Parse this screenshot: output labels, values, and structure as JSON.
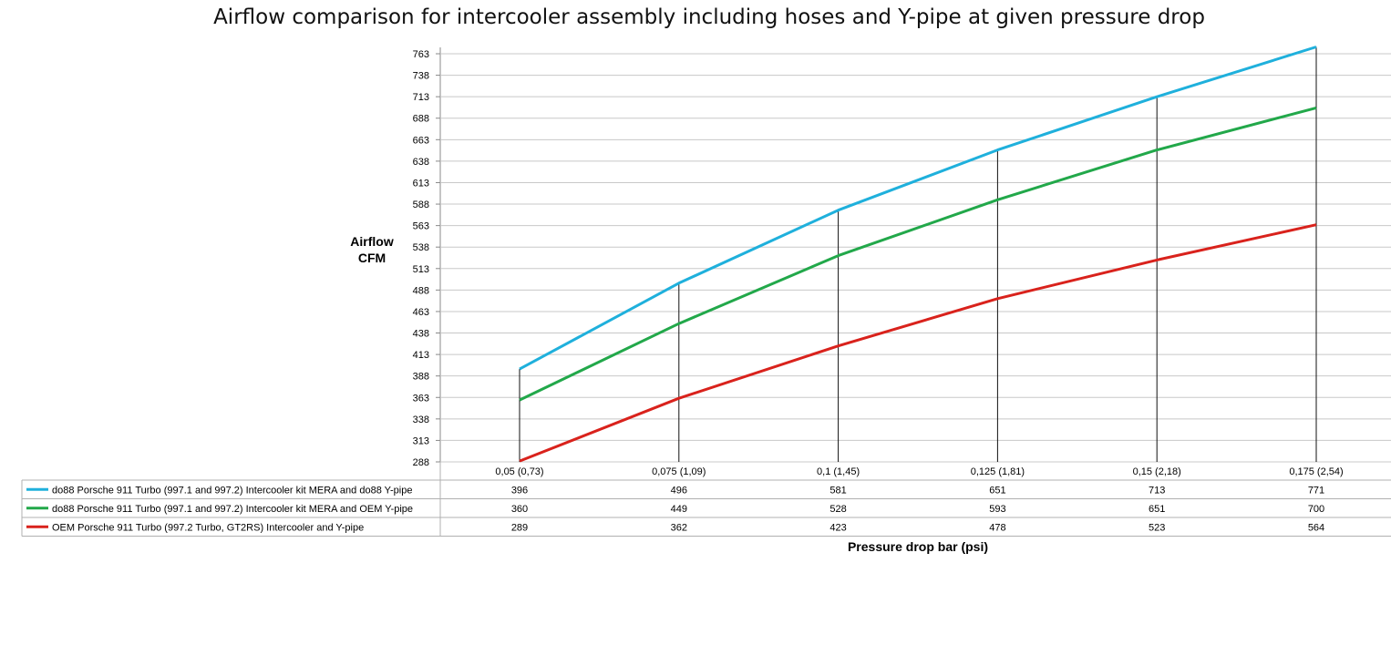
{
  "chart_data": {
    "type": "line",
    "title": "Airflow comparison for intercooler assembly including hoses and Y-pipe at given pressure drop",
    "ylabel_line1": "Airflow",
    "ylabel_line2": "CFM",
    "xlabel": "Pressure drop bar (psi)",
    "categories": [
      "0,05 (0,73)",
      "0,075 (1,09)",
      "0,1 (1,45)",
      "0,125 (1,81)",
      "0,15 (2,18)",
      "0,175 (2,54)"
    ],
    "yticks": [
      288,
      313,
      338,
      363,
      388,
      413,
      438,
      463,
      488,
      513,
      538,
      563,
      588,
      613,
      638,
      663,
      688,
      713,
      738,
      763
    ],
    "ylim": [
      288,
      775
    ],
    "grid": true,
    "legend": "data-table-below",
    "series": [
      {
        "name": "do88 Porsche 911 Turbo (997.1 and 997.2) Intercooler kit MERA and do88 Y-pipe",
        "color": "#1fb0dc",
        "values": [
          396,
          496,
          581,
          651,
          713,
          771
        ]
      },
      {
        "name": "do88 Porsche 911 Turbo (997.1 and 997.2) Intercooler kit MERA and OEM Y-pipe",
        "color": "#22a84a",
        "values": [
          360,
          449,
          528,
          593,
          651,
          700
        ]
      },
      {
        "name": "OEM Porsche 911 Turbo (997.2 Turbo,  GT2RS) Intercooler and Y-pipe",
        "color": "#d9221c",
        "values": [
          289,
          362,
          423,
          478,
          523,
          564
        ]
      }
    ]
  }
}
